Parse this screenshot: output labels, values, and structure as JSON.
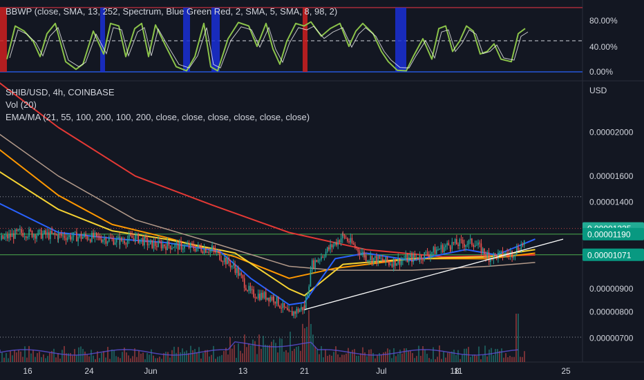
{
  "indicator": {
    "label": "BBWP (close, SMA, 13, 252, Spectrum, Blue Green Red, 2, SMA, 5, SMA, 8, 98, 2)",
    "ticks": [
      "80.00%",
      "40.00%",
      "0.00%"
    ]
  },
  "header": {
    "symbol": "SHIB/USD, 4h, COINBASE",
    "volume": "Vol (20)",
    "ema": "EMA/MA (21, 55, 100, 200, 100, 200, close, close, close, close, close, close)",
    "currency": "USD"
  },
  "colors": {
    "background": "#131722",
    "up": "#26a69a",
    "down": "#ef5350",
    "ema21": "#2962ff",
    "ema55": "#f5d233",
    "ema100": "#ff9800",
    "ema200": "#e53935",
    "ma200": "#b39a8a",
    "trend": "#ffffff",
    "support": "#4caf50",
    "last_price": "#26a69a"
  },
  "chart_data": {
    "type": "candlestick",
    "x_ticks": [
      "16",
      "24",
      "Jun",
      "13",
      "21",
      "Jul",
      "11",
      "18",
      "25"
    ],
    "y_ticks": [
      "0.00002000",
      "0.00001600",
      "0.00001400",
      "0.00000900",
      "0.00000800",
      "0.00000700"
    ],
    "price_labels": [
      {
        "name": "last",
        "value": "0.00001225"
      },
      {
        "name": "resistance",
        "value": "0.00001190"
      },
      {
        "name": "support",
        "value": "0.00001071"
      }
    ],
    "key_levels": {
      "last": 1.225e-05,
      "resistance": 1.19e-05,
      "support": 1.071e-05,
      "dotted_top": 1.44e-05
    },
    "trend_line": {
      "from": [
        "Jun 21",
        8.1e-06
      ],
      "to": [
        "Jul 25",
        1.16e-05
      ]
    },
    "close_path": [
      [
        "May 12",
        1.15e-05
      ],
      [
        "May 15",
        1.2e-05
      ],
      [
        "May 20",
        1.18e-05
      ],
      [
        "May 25",
        1.17e-05
      ],
      [
        "May 28",
        1.15e-05
      ],
      [
        "May 30",
        1.17e-05
      ],
      [
        "Jun 1",
        1.13e-05
      ],
      [
        "Jun 5",
        1.12e-05
      ],
      [
        "Jun 9",
        1.1e-05
      ],
      [
        "Jun 12",
        1e-05
      ],
      [
        "Jun 14",
        8.8e-06
      ],
      [
        "Jun 17",
        8.6e-06
      ],
      [
        "Jun 19",
        7.9e-06
      ],
      [
        "Jun 21",
        8.2e-06
      ],
      [
        "Jun 22",
        1.02e-05
      ],
      [
        "Jun 26",
        1.18e-05
      ],
      [
        "Jun 29",
        1.06e-05
      ],
      [
        "Jul 2",
        1.03e-05
      ],
      [
        "Jul 6",
        1.06e-05
      ],
      [
        "Jul 10",
        1.13e-05
      ],
      [
        "Jul 13",
        1.14e-05
      ],
      [
        "Jul 15",
        1.06e-05
      ],
      [
        "Jul 18",
        1.08e-05
      ],
      [
        "Jul 20",
        1.16e-05
      ],
      [
        "Jul 21",
        1.22e-05
      ]
    ]
  }
}
